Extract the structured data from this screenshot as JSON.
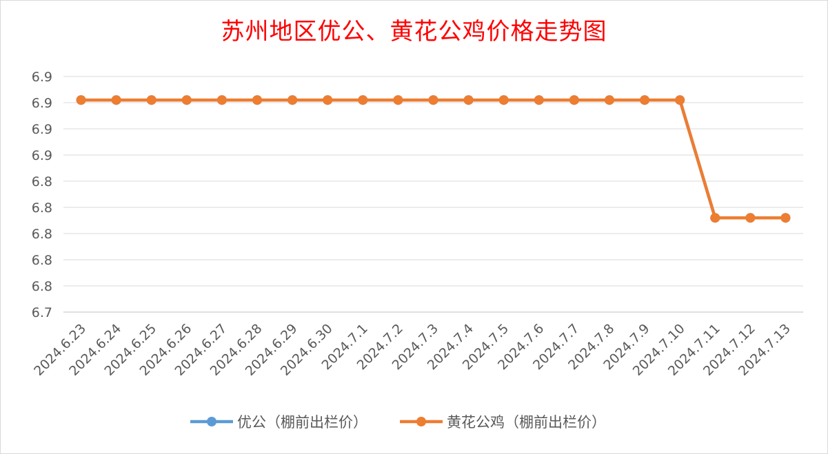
{
  "chart_data": {
    "type": "line",
    "title": "苏州地区优公、黄花公鸡价格走势图",
    "xlabel": "",
    "ylabel": "",
    "categories": [
      "2024.6.23",
      "2024.6.24",
      "2024.6.25",
      "2024.6.26",
      "2024.6.27",
      "2024.6.28",
      "2024.6.29",
      "2024.6.30",
      "2024.7.1",
      "2024.7.2",
      "2024.7.3",
      "2024.7.4",
      "2024.7.5",
      "2024.7.6",
      "2024.7.7",
      "2024.7.8",
      "2024.7.9",
      "2024.7.10",
      "2024.7.11",
      "2024.7.12",
      "2024.7.13"
    ],
    "y_ticks": [
      "6.7",
      "6.8",
      "6.8",
      "6.8",
      "6.8",
      "6.8",
      "6.9",
      "6.9",
      "6.9",
      "6.9"
    ],
    "ylim": [
      6.7,
      6.9
    ],
    "grid": true,
    "legend_position": "bottom",
    "series": [
      {
        "name": "优公（棚前出栏价）",
        "color": "#5b9bd5",
        "values": [
          6.88,
          6.88,
          6.88,
          6.88,
          6.88,
          6.88,
          6.88,
          6.88,
          6.88,
          6.88,
          6.88,
          6.88,
          6.88,
          6.88,
          6.88,
          6.88,
          6.88,
          6.88,
          6.78,
          6.78,
          6.78
        ]
      },
      {
        "name": "黄花公鸡（棚前出栏价）",
        "color": "#ed7d31",
        "values": [
          6.88,
          6.88,
          6.88,
          6.88,
          6.88,
          6.88,
          6.88,
          6.88,
          6.88,
          6.88,
          6.88,
          6.88,
          6.88,
          6.88,
          6.88,
          6.88,
          6.88,
          6.88,
          6.78,
          6.78,
          6.78
        ]
      }
    ]
  }
}
